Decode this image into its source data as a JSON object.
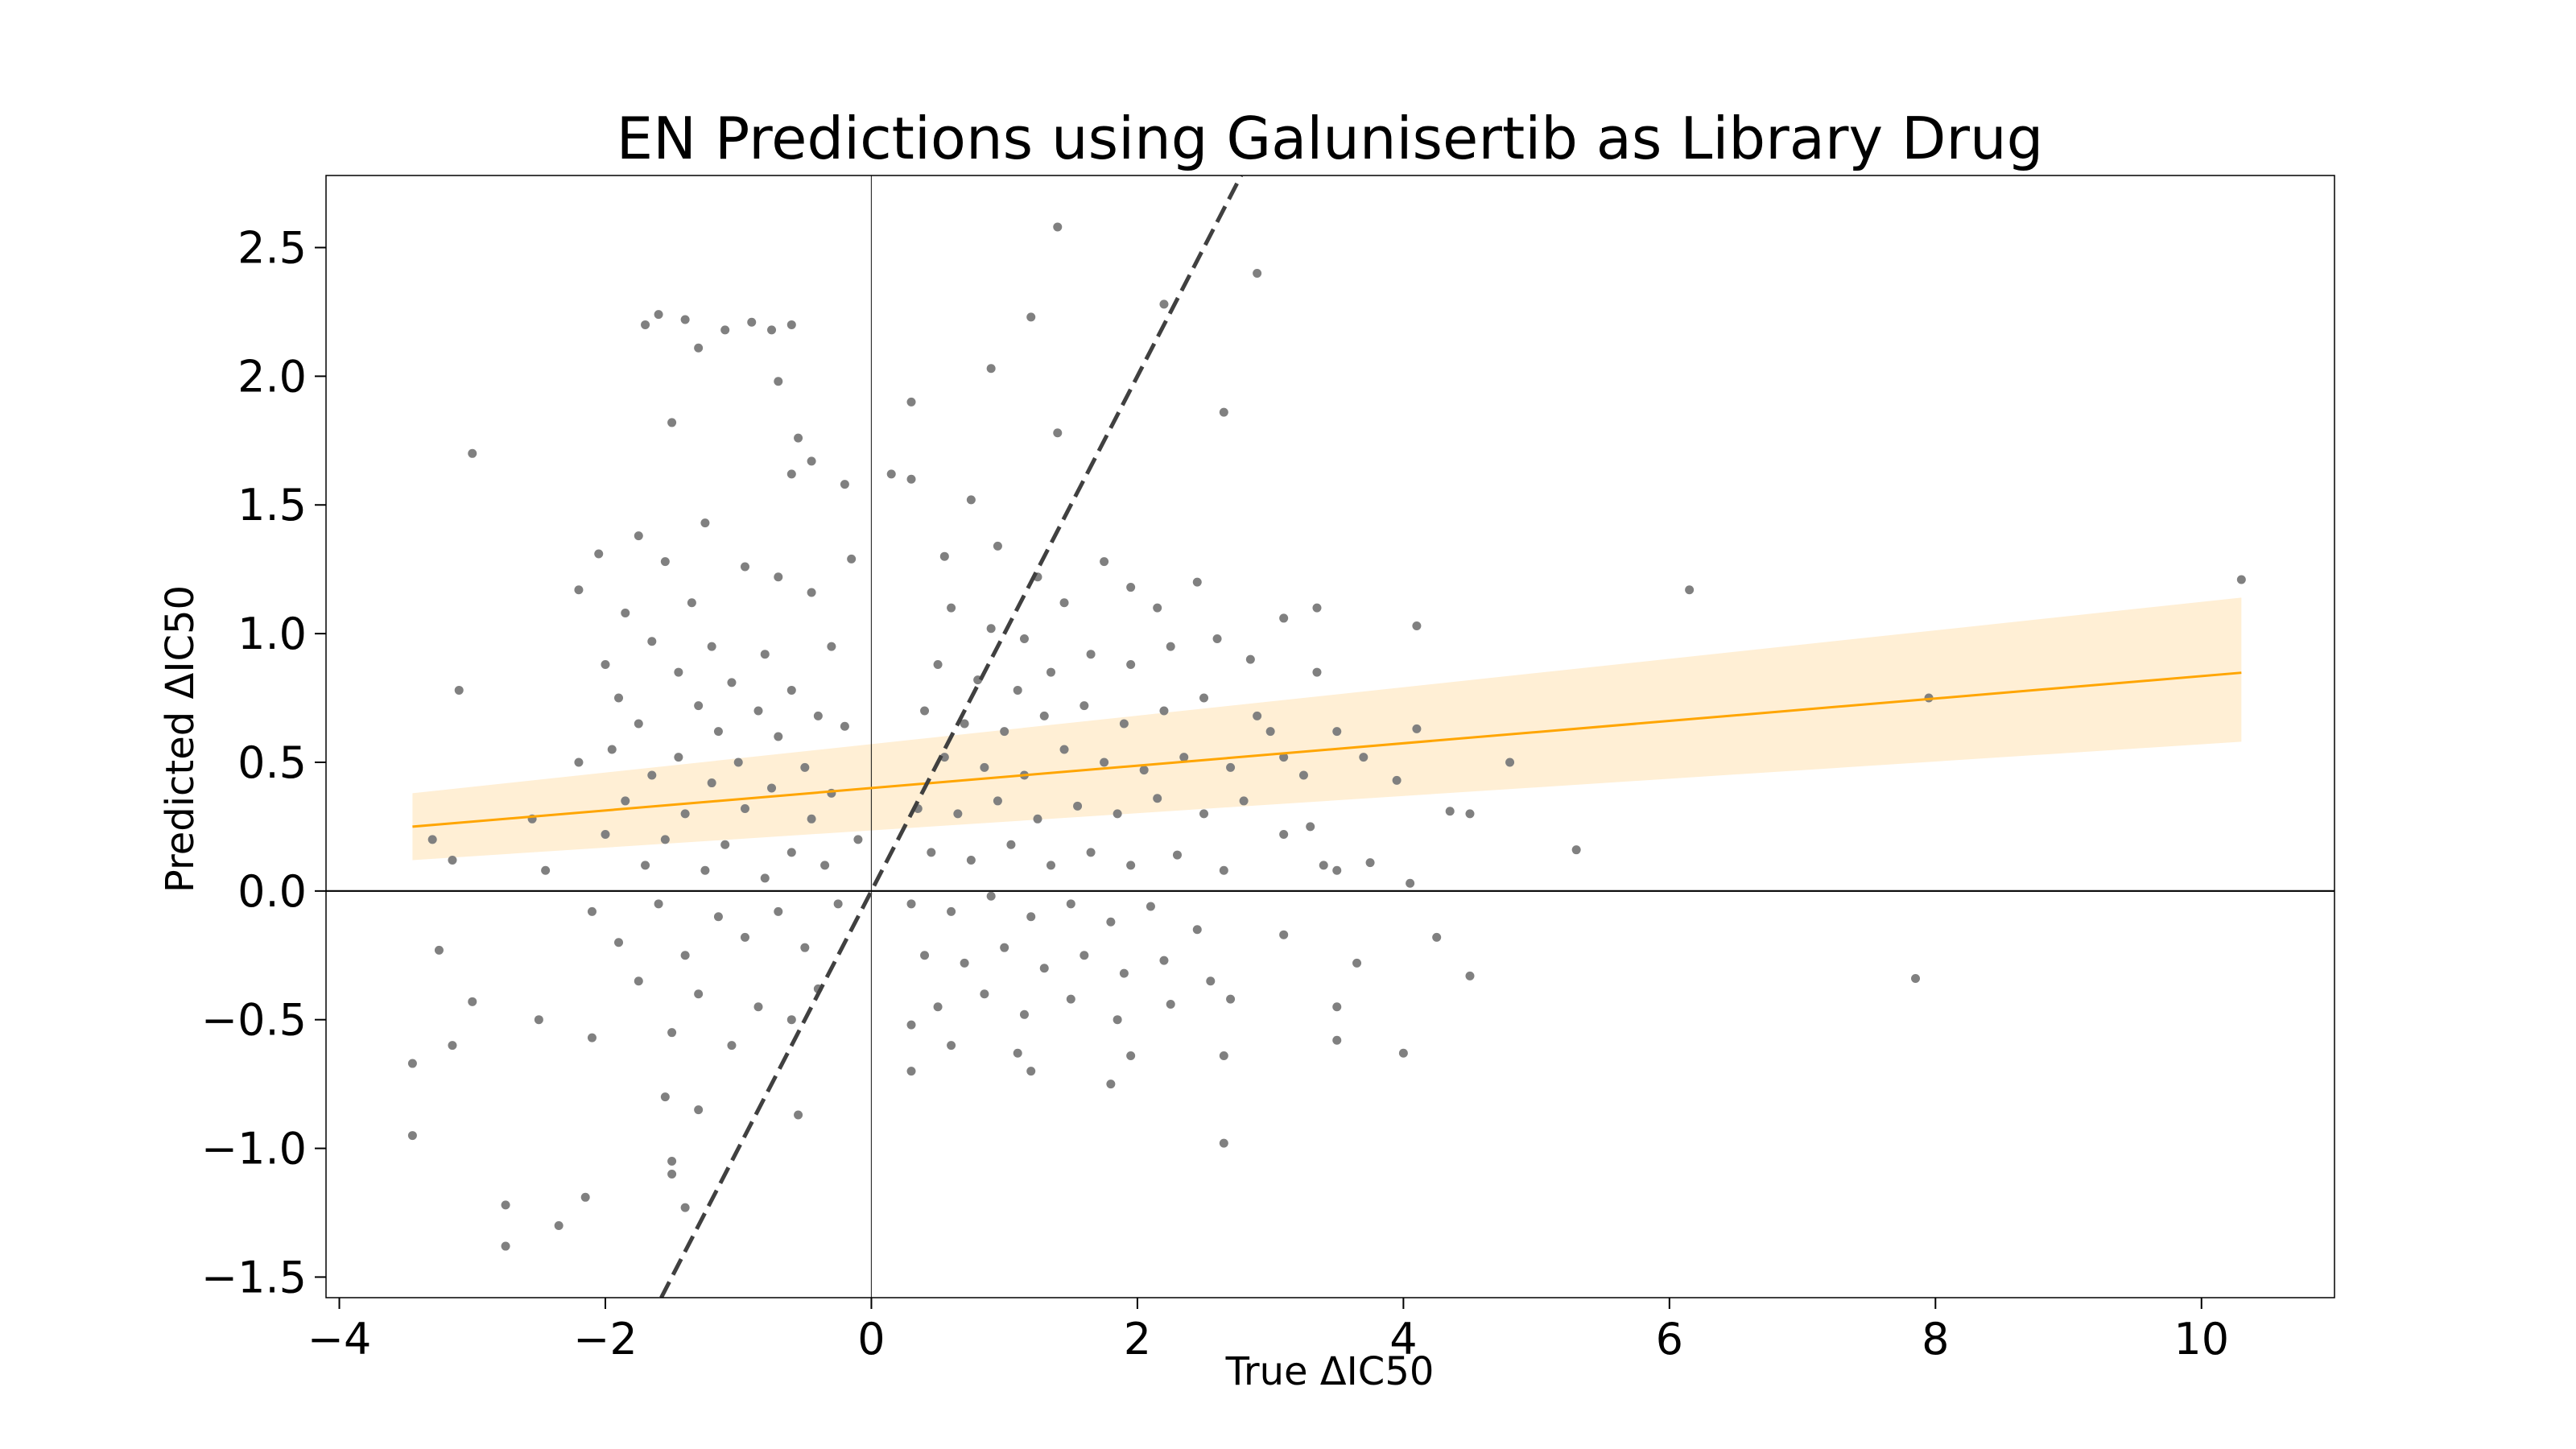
{
  "chart_data": {
    "type": "scatter",
    "title": "EN Predictions using Galunisertib as Library Drug",
    "xlabel": "True ΔIC50",
    "ylabel": "Predicted ΔIC50",
    "xlim": [
      -4.1,
      11.0
    ],
    "ylim": [
      -1.58,
      2.78
    ],
    "x_ticks": [
      -4,
      -2,
      0,
      2,
      4,
      6,
      8,
      10
    ],
    "x_tick_labels": [
      "−4",
      "−2",
      "0",
      "2",
      "4",
      "6",
      "8",
      "10"
    ],
    "y_ticks": [
      -1.5,
      -1.0,
      -0.5,
      0.0,
      0.5,
      1.0,
      1.5,
      2.0,
      2.5
    ],
    "y_tick_labels": [
      "−1.5",
      "−1.0",
      "−0.5",
      "0.0",
      "0.5",
      "1.0",
      "1.5",
      "2.0",
      "2.5"
    ],
    "grid": false,
    "colors": {
      "points": "#808080",
      "regression": "#FFA500",
      "confidence_band": "#FFEFD5",
      "identity_line": "#404040",
      "zero_lines": "#000000"
    },
    "regression": {
      "x_range": [
        -3.45,
        10.3
      ],
      "slope": 0.0435,
      "intercept": 0.4,
      "ci_lower": [
        0.12,
        0.58
      ],
      "ci_upper": [
        0.38,
        1.14
      ]
    },
    "identity_line": {
      "slope": 1,
      "intercept": 0
    },
    "reference_lines": {
      "x": 0,
      "y": 0
    },
    "points": [
      {
        "x": -1.6,
        "y": 2.24
      },
      {
        "x": -1.4,
        "y": 2.22
      },
      {
        "x": -1.3,
        "y": 2.11
      },
      {
        "x": -1.1,
        "y": 2.18
      },
      {
        "x": -0.9,
        "y": 2.21
      },
      {
        "x": -0.75,
        "y": 2.18
      },
      {
        "x": -0.6,
        "y": 2.2
      },
      {
        "x": -1.7,
        "y": 2.2
      },
      {
        "x": -1.5,
        "y": 1.82
      },
      {
        "x": -0.7,
        "y": 1.98
      },
      {
        "x": -0.55,
        "y": 1.76
      },
      {
        "x": -0.45,
        "y": 1.67
      },
      {
        "x": -0.6,
        "y": 1.62
      },
      {
        "x": -0.2,
        "y": 1.58
      },
      {
        "x": -3.0,
        "y": 1.7
      },
      {
        "x": 1.4,
        "y": 2.58
      },
      {
        "x": 2.9,
        "y": 2.4
      },
      {
        "x": 2.2,
        "y": 2.28
      },
      {
        "x": 1.2,
        "y": 2.23
      },
      {
        "x": 0.9,
        "y": 2.03
      },
      {
        "x": 0.3,
        "y": 1.9
      },
      {
        "x": 2.65,
        "y": 1.86
      },
      {
        "x": 1.4,
        "y": 1.78
      },
      {
        "x": 0.15,
        "y": 1.62
      },
      {
        "x": 0.3,
        "y": 1.6
      },
      {
        "x": -1.75,
        "y": 1.38
      },
      {
        "x": -1.25,
        "y": 1.43
      },
      {
        "x": -2.05,
        "y": 1.31
      },
      {
        "x": -1.55,
        "y": 1.28
      },
      {
        "x": -0.95,
        "y": 1.26
      },
      {
        "x": -0.7,
        "y": 1.22
      },
      {
        "x": -0.45,
        "y": 1.16
      },
      {
        "x": -2.2,
        "y": 1.17
      },
      {
        "x": -1.85,
        "y": 1.08
      },
      {
        "x": -1.35,
        "y": 1.12
      },
      {
        "x": -0.15,
        "y": 1.29
      },
      {
        "x": -1.65,
        "y": 0.97
      },
      {
        "x": -1.2,
        "y": 0.95
      },
      {
        "x": -0.8,
        "y": 0.92
      },
      {
        "x": -0.3,
        "y": 0.95
      },
      {
        "x": -2.0,
        "y": 0.88
      },
      {
        "x": -1.45,
        "y": 0.85
      },
      {
        "x": -1.05,
        "y": 0.81
      },
      {
        "x": -0.6,
        "y": 0.78
      },
      {
        "x": -1.9,
        "y": 0.75
      },
      {
        "x": -1.3,
        "y": 0.72
      },
      {
        "x": -0.85,
        "y": 0.7
      },
      {
        "x": -0.4,
        "y": 0.68
      },
      {
        "x": -1.75,
        "y": 0.65
      },
      {
        "x": -1.15,
        "y": 0.62
      },
      {
        "x": -0.7,
        "y": 0.6
      },
      {
        "x": -0.2,
        "y": 0.64
      },
      {
        "x": -1.95,
        "y": 0.55
      },
      {
        "x": -1.45,
        "y": 0.52
      },
      {
        "x": -1.0,
        "y": 0.5
      },
      {
        "x": -0.5,
        "y": 0.48
      },
      {
        "x": -2.2,
        "y": 0.5
      },
      {
        "x": -1.65,
        "y": 0.45
      },
      {
        "x": -1.2,
        "y": 0.42
      },
      {
        "x": -0.75,
        "y": 0.4
      },
      {
        "x": -0.3,
        "y": 0.38
      },
      {
        "x": -1.85,
        "y": 0.35
      },
      {
        "x": -1.4,
        "y": 0.3
      },
      {
        "x": -0.95,
        "y": 0.32
      },
      {
        "x": -0.45,
        "y": 0.28
      },
      {
        "x": -2.0,
        "y": 0.22
      },
      {
        "x": -1.55,
        "y": 0.2
      },
      {
        "x": -1.1,
        "y": 0.18
      },
      {
        "x": -0.6,
        "y": 0.15
      },
      {
        "x": -0.1,
        "y": 0.2
      },
      {
        "x": -1.7,
        "y": 0.1
      },
      {
        "x": -1.25,
        "y": 0.08
      },
      {
        "x": -0.8,
        "y": 0.05
      },
      {
        "x": -0.35,
        "y": 0.1
      },
      {
        "x": -2.1,
        "y": -0.08
      },
      {
        "x": -1.6,
        "y": -0.05
      },
      {
        "x": -1.15,
        "y": -0.1
      },
      {
        "x": -0.7,
        "y": -0.08
      },
      {
        "x": -0.25,
        "y": -0.05
      },
      {
        "x": -1.9,
        "y": -0.2
      },
      {
        "x": -1.4,
        "y": -0.25
      },
      {
        "x": -0.95,
        "y": -0.18
      },
      {
        "x": -0.5,
        "y": -0.22
      },
      {
        "x": -1.75,
        "y": -0.35
      },
      {
        "x": -1.3,
        "y": -0.4
      },
      {
        "x": -0.85,
        "y": -0.45
      },
      {
        "x": -0.4,
        "y": -0.38
      },
      {
        "x": -1.5,
        "y": -0.55
      },
      {
        "x": -1.05,
        "y": -0.6
      },
      {
        "x": -0.6,
        "y": -0.5
      },
      {
        "x": -1.55,
        "y": -0.8
      },
      {
        "x": -1.3,
        "y": -0.85
      },
      {
        "x": -0.55,
        "y": -0.87
      },
      {
        "x": -1.5,
        "y": -1.05
      },
      {
        "x": -1.5,
        "y": -1.1
      },
      {
        "x": -1.4,
        "y": -1.23
      },
      {
        "x": -2.15,
        "y": -1.19
      },
      {
        "x": -2.75,
        "y": -1.22
      },
      {
        "x": -2.75,
        "y": -1.38
      },
      {
        "x": -2.35,
        "y": -1.3
      },
      {
        "x": -3.45,
        "y": -0.67
      },
      {
        "x": -3.45,
        "y": -0.95
      },
      {
        "x": -3.25,
        "y": -0.23
      },
      {
        "x": -3.1,
        "y": 0.78
      },
      {
        "x": -3.15,
        "y": 0.12
      },
      {
        "x": -3.3,
        "y": 0.2
      },
      {
        "x": -2.55,
        "y": 0.28
      },
      {
        "x": -2.45,
        "y": 0.08
      },
      {
        "x": -2.5,
        "y": -0.5
      },
      {
        "x": -3.0,
        "y": -0.43
      },
      {
        "x": -3.15,
        "y": -0.6
      },
      {
        "x": -2.1,
        "y": -0.57
      },
      {
        "x": 0.55,
        "y": 1.3
      },
      {
        "x": 0.75,
        "y": 1.52
      },
      {
        "x": 0.95,
        "y": 1.34
      },
      {
        "x": 1.25,
        "y": 1.22
      },
      {
        "x": 0.6,
        "y": 1.1
      },
      {
        "x": 0.9,
        "y": 1.02
      },
      {
        "x": 1.15,
        "y": 0.98
      },
      {
        "x": 1.45,
        "y": 1.12
      },
      {
        "x": 1.75,
        "y": 1.28
      },
      {
        "x": 1.95,
        "y": 1.18
      },
      {
        "x": 2.15,
        "y": 1.1
      },
      {
        "x": 2.45,
        "y": 1.2
      },
      {
        "x": 0.5,
        "y": 0.88
      },
      {
        "x": 0.8,
        "y": 0.82
      },
      {
        "x": 1.1,
        "y": 0.78
      },
      {
        "x": 1.35,
        "y": 0.85
      },
      {
        "x": 1.65,
        "y": 0.92
      },
      {
        "x": 1.95,
        "y": 0.88
      },
      {
        "x": 2.25,
        "y": 0.95
      },
      {
        "x": 2.6,
        "y": 0.98
      },
      {
        "x": 2.85,
        "y": 0.9
      },
      {
        "x": 0.4,
        "y": 0.7
      },
      {
        "x": 0.7,
        "y": 0.65
      },
      {
        "x": 1.0,
        "y": 0.62
      },
      {
        "x": 1.3,
        "y": 0.68
      },
      {
        "x": 1.6,
        "y": 0.72
      },
      {
        "x": 1.9,
        "y": 0.65
      },
      {
        "x": 2.2,
        "y": 0.7
      },
      {
        "x": 2.5,
        "y": 0.75
      },
      {
        "x": 2.9,
        "y": 0.68
      },
      {
        "x": 0.55,
        "y": 0.52
      },
      {
        "x": 0.85,
        "y": 0.48
      },
      {
        "x": 1.15,
        "y": 0.45
      },
      {
        "x": 1.45,
        "y": 0.55
      },
      {
        "x": 1.75,
        "y": 0.5
      },
      {
        "x": 2.05,
        "y": 0.47
      },
      {
        "x": 2.35,
        "y": 0.52
      },
      {
        "x": 2.7,
        "y": 0.48
      },
      {
        "x": 3.1,
        "y": 0.52
      },
      {
        "x": 0.35,
        "y": 0.32
      },
      {
        "x": 0.65,
        "y": 0.3
      },
      {
        "x": 0.95,
        "y": 0.35
      },
      {
        "x": 1.25,
        "y": 0.28
      },
      {
        "x": 1.55,
        "y": 0.33
      },
      {
        "x": 1.85,
        "y": 0.3
      },
      {
        "x": 2.15,
        "y": 0.36
      },
      {
        "x": 2.5,
        "y": 0.3
      },
      {
        "x": 2.8,
        "y": 0.35
      },
      {
        "x": 3.3,
        "y": 0.25
      },
      {
        "x": 0.45,
        "y": 0.15
      },
      {
        "x": 0.75,
        "y": 0.12
      },
      {
        "x": 1.05,
        "y": 0.18
      },
      {
        "x": 1.35,
        "y": 0.1
      },
      {
        "x": 1.65,
        "y": 0.15
      },
      {
        "x": 1.95,
        "y": 0.1
      },
      {
        "x": 2.3,
        "y": 0.14
      },
      {
        "x": 2.65,
        "y": 0.08
      },
      {
        "x": 0.3,
        "y": -0.05
      },
      {
        "x": 0.6,
        "y": -0.08
      },
      {
        "x": 0.9,
        "y": -0.02
      },
      {
        "x": 1.2,
        "y": -0.1
      },
      {
        "x": 1.5,
        "y": -0.05
      },
      {
        "x": 1.8,
        "y": -0.12
      },
      {
        "x": 2.1,
        "y": -0.06
      },
      {
        "x": 2.45,
        "y": -0.15
      },
      {
        "x": 0.4,
        "y": -0.25
      },
      {
        "x": 0.7,
        "y": -0.28
      },
      {
        "x": 1.0,
        "y": -0.22
      },
      {
        "x": 1.3,
        "y": -0.3
      },
      {
        "x": 1.6,
        "y": -0.25
      },
      {
        "x": 1.9,
        "y": -0.32
      },
      {
        "x": 2.2,
        "y": -0.27
      },
      {
        "x": 2.55,
        "y": -0.35
      },
      {
        "x": 0.5,
        "y": -0.45
      },
      {
        "x": 0.85,
        "y": -0.4
      },
      {
        "x": 1.15,
        "y": -0.48
      },
      {
        "x": 1.5,
        "y": -0.42
      },
      {
        "x": 1.85,
        "y": -0.5
      },
      {
        "x": 2.25,
        "y": -0.44
      },
      {
        "x": 2.7,
        "y": -0.42
      },
      {
        "x": 0.3,
        "y": -0.52
      },
      {
        "x": 0.6,
        "y": -0.6
      },
      {
        "x": 1.1,
        "y": -0.63
      },
      {
        "x": 1.95,
        "y": -0.64
      },
      {
        "x": 2.65,
        "y": -0.64
      },
      {
        "x": 0.3,
        "y": -0.7
      },
      {
        "x": 1.2,
        "y": -0.7
      },
      {
        "x": 1.8,
        "y": -0.75
      },
      {
        "x": 2.65,
        "y": -0.98
      },
      {
        "x": 3.35,
        "y": 0.85
      },
      {
        "x": 3.1,
        "y": 1.06
      },
      {
        "x": 3.35,
        "y": 1.1
      },
      {
        "x": 3.0,
        "y": 0.62
      },
      {
        "x": 3.25,
        "y": 0.45
      },
      {
        "x": 3.5,
        "y": 0.62
      },
      {
        "x": 3.7,
        "y": 0.52
      },
      {
        "x": 3.95,
        "y": 0.43
      },
      {
        "x": 4.1,
        "y": 0.63
      },
      {
        "x": 4.1,
        "y": 1.03
      },
      {
        "x": 3.1,
        "y": 0.22
      },
      {
        "x": 3.4,
        "y": 0.1
      },
      {
        "x": 3.5,
        "y": 0.08
      },
      {
        "x": 3.75,
        "y": 0.11
      },
      {
        "x": 4.05,
        "y": 0.03
      },
      {
        "x": 3.65,
        "y": -0.28
      },
      {
        "x": 3.5,
        "y": -0.45
      },
      {
        "x": 3.5,
        "y": -0.58
      },
      {
        "x": 4.0,
        "y": -0.63
      },
      {
        "x": 4.25,
        "y": -0.18
      },
      {
        "x": 3.1,
        "y": -0.17
      },
      {
        "x": 4.35,
        "y": 0.31
      },
      {
        "x": 4.5,
        "y": 0.3
      },
      {
        "x": 4.5,
        "y": -0.33
      },
      {
        "x": 4.8,
        "y": 0.5
      },
      {
        "x": 5.3,
        "y": 0.16
      },
      {
        "x": 6.15,
        "y": 1.17
      },
      {
        "x": 7.95,
        "y": 0.75
      },
      {
        "x": 7.85,
        "y": -0.34
      },
      {
        "x": 10.3,
        "y": 1.21
      }
    ]
  }
}
